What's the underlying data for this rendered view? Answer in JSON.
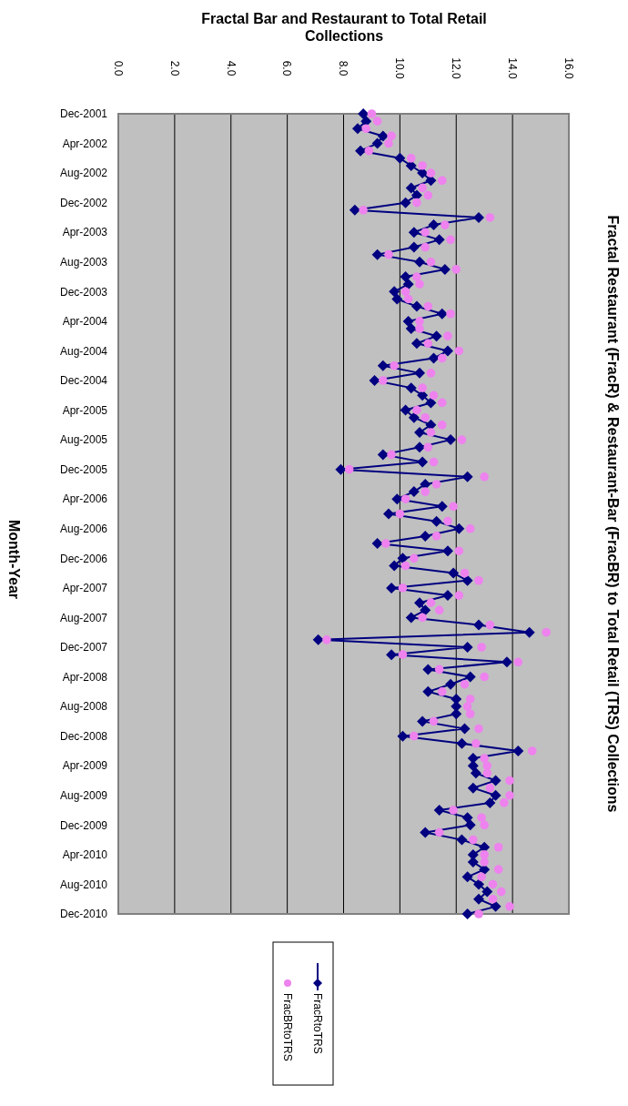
{
  "chart_data": {
    "type": "line",
    "title": "Fractal Restaurant  (FracR) & Restaurant-Bar  (FracBR) to Total Retail (TRS) Collections",
    "orientation": "horizontal",
    "ylabel": "Month-Year",
    "xlabel": "Fractal Bar and Restaurant to Total Retail Collections",
    "categories": [
      "Dec-2001",
      null,
      null,
      null,
      "Apr-2002",
      null,
      null,
      null,
      "Aug-2002",
      null,
      null,
      null,
      "Dec-2002",
      null,
      null,
      null,
      "Apr-2003",
      null,
      null,
      null,
      "Aug-2003",
      null,
      null,
      null,
      "Dec-2003",
      null,
      null,
      null,
      "Apr-2004",
      null,
      null,
      null,
      "Aug-2004",
      null,
      null,
      null,
      "Dec-2004",
      null,
      null,
      null,
      "Apr-2005",
      null,
      null,
      null,
      "Aug-2005",
      null,
      null,
      null,
      "Dec-2005",
      null,
      null,
      null,
      "Apr-2006",
      null,
      null,
      null,
      "Aug-2006",
      null,
      null,
      null,
      "Dec-2006",
      null,
      null,
      null,
      "Apr-2007",
      null,
      null,
      null,
      "Aug-2007",
      null,
      null,
      null,
      "Dec-2007",
      null,
      null,
      null,
      "Apr-2008",
      null,
      null,
      null,
      "Aug-2008",
      null,
      null,
      null,
      "Dec-2008",
      null,
      null,
      null,
      "Apr-2009",
      null,
      null,
      null,
      "Aug-2009",
      null,
      null,
      null,
      "Dec-2009",
      null,
      null,
      null,
      "Apr-2010",
      null,
      null,
      null,
      "Aug-2010",
      null,
      null,
      null,
      "Dec-2010"
    ],
    "series": [
      {
        "name": "FracRtoTRS",
        "type": "line",
        "marker": "diamond",
        "color": "#000080",
        "values": [
          8.7,
          8.8,
          8.5,
          9.4,
          9.2,
          8.6,
          10.0,
          10.4,
          10.8,
          11.1,
          10.4,
          10.6,
          10.2,
          8.4,
          12.8,
          11.2,
          10.5,
          11.4,
          10.5,
          9.2,
          10.7,
          11.6,
          10.2,
          10.3,
          9.8,
          9.9,
          10.6,
          11.5,
          10.3,
          10.4,
          11.3,
          10.6,
          11.7,
          11.2,
          9.4,
          10.7,
          9.1,
          10.4,
          10.8,
          11.1,
          10.2,
          10.5,
          11.1,
          10.7,
          11.8,
          10.7,
          9.4,
          10.8,
          7.9,
          12.4,
          10.9,
          10.5,
          9.9,
          11.5,
          9.6,
          11.3,
          12.1,
          10.9,
          9.2,
          11.7,
          10.1,
          9.8,
          11.9,
          12.4,
          9.7,
          11.7,
          10.7,
          10.9,
          10.4,
          12.8,
          14.6,
          7.1,
          12.4,
          9.7,
          13.8,
          11.0,
          12.5,
          11.8,
          11.0,
          12.0,
          12.0,
          12.0,
          10.8,
          12.3,
          10.1,
          12.2,
          14.2,
          12.6,
          12.6,
          12.7,
          13.4,
          12.6,
          13.4,
          13.2,
          11.4,
          12.4,
          12.5,
          10.9,
          12.2,
          13.0,
          12.6,
          12.6,
          13.0,
          12.4,
          12.8,
          13.1,
          12.8,
          13.4,
          12.4
        ]
      },
      {
        "name": "FracBRtoTRS",
        "type": "scatter",
        "marker": "circle",
        "color": "#ee82ee",
        "values": [
          9.0,
          9.2,
          8.8,
          9.7,
          9.6,
          8.9,
          10.4,
          10.8,
          11.1,
          11.5,
          10.8,
          11.0,
          10.6,
          8.7,
          13.2,
          11.6,
          10.9,
          11.8,
          10.9,
          9.6,
          11.1,
          12.0,
          10.6,
          10.7,
          10.2,
          10.3,
          11.0,
          11.8,
          10.7,
          10.7,
          11.7,
          11.0,
          12.1,
          11.5,
          9.8,
          11.1,
          9.4,
          10.8,
          11.2,
          11.5,
          10.6,
          10.9,
          11.5,
          11.1,
          12.2,
          11.0,
          9.7,
          11.2,
          8.2,
          13.0,
          11.3,
          10.9,
          10.2,
          11.9,
          10.0,
          11.7,
          12.5,
          11.3,
          9.5,
          12.1,
          10.5,
          10.2,
          12.3,
          12.8,
          10.1,
          12.1,
          11.1,
          11.4,
          10.8,
          13.2,
          15.2,
          7.4,
          12.9,
          10.1,
          14.2,
          11.4,
          13.0,
          12.3,
          11.5,
          12.5,
          12.4,
          12.5,
          11.2,
          12.8,
          10.5,
          12.7,
          14.7,
          13.0,
          13.1,
          13.1,
          13.9,
          13.2,
          13.9,
          13.7,
          11.9,
          12.9,
          13.0,
          11.4,
          12.6,
          13.5,
          13.0,
          13.0,
          13.5,
          12.9,
          13.3,
          13.6,
          13.3,
          13.9,
          12.8
        ]
      }
    ],
    "xlim": [
      0,
      16
    ],
    "xticks": [
      {
        "value": 0,
        "label": "0.0"
      },
      {
        "value": 2,
        "label": "2.0"
      },
      {
        "value": 4,
        "label": "4.0"
      },
      {
        "value": 6,
        "label": "6.0"
      },
      {
        "value": 8,
        "label": "8.0"
      },
      {
        "value": 10,
        "label": "10.0"
      },
      {
        "value": 12,
        "label": "12.0"
      },
      {
        "value": 14,
        "label": "14.0"
      },
      {
        "value": 16,
        "label": "16.0"
      }
    ],
    "grid": "x",
    "legend": "bottom"
  }
}
